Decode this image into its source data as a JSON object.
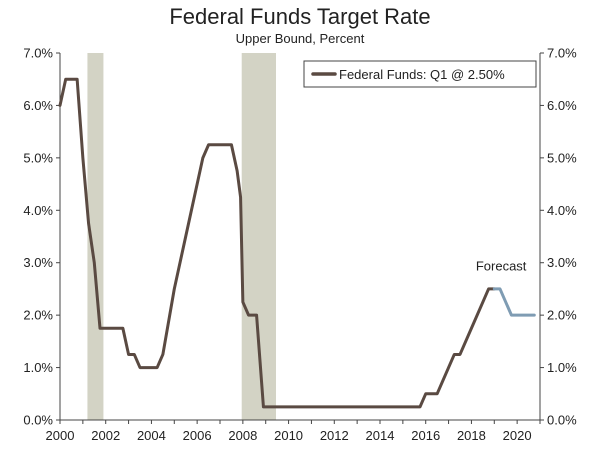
{
  "chart_data": {
    "type": "line",
    "title": "Federal Funds Target Rate",
    "subtitle": "Upper Bound, Percent",
    "xlim": [
      2000,
      2021
    ],
    "ylim": [
      0,
      7
    ],
    "x_ticks": [
      "2000",
      "2002",
      "2004",
      "2006",
      "2008",
      "2010",
      "2012",
      "2014",
      "2016",
      "2018",
      "2020"
    ],
    "y_ticks": [
      "0.0%",
      "1.0%",
      "2.0%",
      "3.0%",
      "4.0%",
      "5.0%",
      "6.0%",
      "7.0%"
    ],
    "grid": false,
    "legend_position": "top-right",
    "colors": {
      "federal_funds": "#5a4a42",
      "forecast": "#7f9cb3",
      "recession": "#d3d3c5"
    },
    "recessions": [
      [
        2001.2,
        2001.9
      ],
      [
        2007.95,
        2009.45
      ]
    ],
    "series": [
      {
        "name": "Federal Funds: Q1 @ 2.50%",
        "points": [
          [
            2000.0,
            6.0
          ],
          [
            2000.25,
            6.5
          ],
          [
            2000.5,
            6.5
          ],
          [
            2000.75,
            6.5
          ],
          [
            2001.0,
            5.0
          ],
          [
            2001.25,
            3.75
          ],
          [
            2001.5,
            3.0
          ],
          [
            2001.75,
            1.75
          ],
          [
            2002.0,
            1.75
          ],
          [
            2002.75,
            1.75
          ],
          [
            2003.0,
            1.25
          ],
          [
            2003.25,
            1.25
          ],
          [
            2003.5,
            1.0
          ],
          [
            2004.25,
            1.0
          ],
          [
            2004.5,
            1.25
          ],
          [
            2005.0,
            2.5
          ],
          [
            2005.5,
            3.5
          ],
          [
            2006.0,
            4.5
          ],
          [
            2006.25,
            5.0
          ],
          [
            2006.5,
            5.25
          ],
          [
            2007.5,
            5.25
          ],
          [
            2007.75,
            4.75
          ],
          [
            2007.9,
            4.25
          ],
          [
            2008.0,
            2.25
          ],
          [
            2008.25,
            2.0
          ],
          [
            2008.6,
            2.0
          ],
          [
            2008.9,
            0.25
          ],
          [
            2015.5,
            0.25
          ],
          [
            2015.75,
            0.25
          ],
          [
            2016.0,
            0.5
          ],
          [
            2016.5,
            0.5
          ],
          [
            2017.0,
            1.0
          ],
          [
            2017.25,
            1.25
          ],
          [
            2017.5,
            1.25
          ],
          [
            2018.0,
            1.75
          ],
          [
            2018.5,
            2.25
          ],
          [
            2018.75,
            2.5
          ],
          [
            2019.0,
            2.5
          ]
        ]
      },
      {
        "role": "forecast",
        "points": [
          [
            2019.0,
            2.5
          ],
          [
            2019.25,
            2.5
          ],
          [
            2019.5,
            2.25
          ],
          [
            2019.75,
            2.0
          ],
          [
            2020.0,
            2.0
          ],
          [
            2020.75,
            2.0
          ]
        ]
      }
    ],
    "annotations": [
      {
        "text": "Forecast",
        "x": 2019.3,
        "y": 2.85
      }
    ]
  }
}
